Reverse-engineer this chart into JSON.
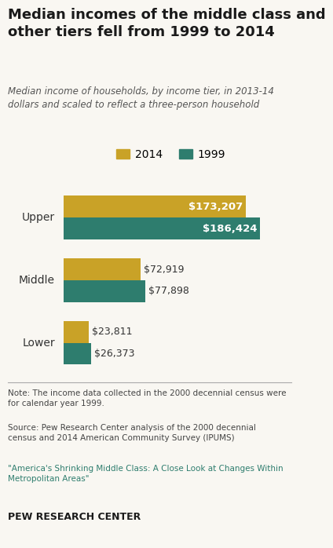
{
  "title": "Median incomes of the middle class and\nother tiers fell from 1999 to 2014",
  "subtitle": "Median income of households, by income tier, in 2013-14\ndollars and scaled to reflect a three-person household",
  "categories": [
    "Upper",
    "Middle",
    "Lower"
  ],
  "values_2014": [
    173207,
    72919,
    23811
  ],
  "values_1999": [
    186424,
    77898,
    26373
  ],
  "labels_2014": [
    "$173,207",
    "$72,919",
    "$23,811"
  ],
  "labels_1999": [
    "$186,424",
    "$77,898",
    "$26,373"
  ],
  "color_2014": "#C9A227",
  "color_1999": "#2E7D6E",
  "max_value": 200000,
  "bar_height": 0.35,
  "note_text": "Note: The income data collected in the 2000 decennial census were\nfor calendar year 1999.",
  "source_text": "Source: Pew Research Center analysis of the 2000 decennial\ncensus and 2014 American Community Survey (IPUMS)",
  "citation_text": "\"America's Shrinking Middle Class: A Close Look at Changes Within\nMetropolitan Areas\"",
  "footer_text": "PEW RESEARCH CENTER",
  "bg_color": "#f9f7f2",
  "title_color": "#1a1a1a",
  "subtitle_color": "#555555",
  "label_color_on_bar": "#ffffff",
  "label_color_outside": "#333333"
}
